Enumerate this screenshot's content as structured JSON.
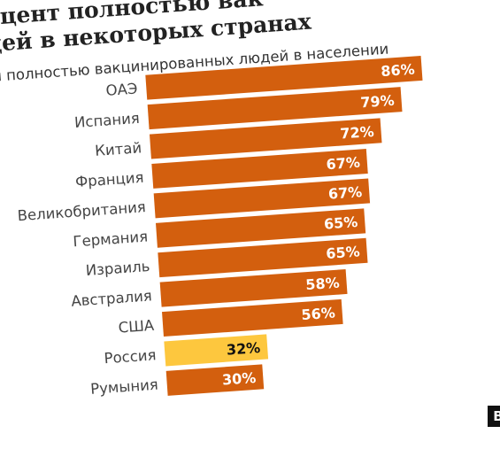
{
  "title_lines": [
    "оцент полностью вак",
    "дей в некоторых странах"
  ],
  "subtitle": "я полностью вакцинированных людей в населении",
  "logo_text": "B",
  "colors": {
    "bar": "#d35f0e",
    "highlight": "#fdc73e",
    "label_on_bar": "#ffffff",
    "label_on_highlight": "#111111"
  },
  "chart_data": {
    "type": "bar",
    "orientation": "horizontal",
    "title": "оцент полностью вак… дей в некоторых странах",
    "subtitle": "я полностью вакцинированных людей в населении",
    "categories": [
      "ОАЭ",
      "Испания",
      "Китай",
      "Франция",
      "Великобритания",
      "Германия",
      "Израиль",
      "Австралия",
      "США",
      "Россия",
      "Румыния"
    ],
    "values": [
      86,
      79,
      72,
      67,
      67,
      65,
      65,
      58,
      56,
      32,
      30
    ],
    "value_labels": [
      "86%",
      "79%",
      "72%",
      "67%",
      "67%",
      "65%",
      "65%",
      "58%",
      "56%",
      "32%",
      "30%"
    ],
    "highlight": "Россия",
    "xlabel": "",
    "ylabel": "",
    "xlim": [
      0,
      86
    ],
    "grid": false,
    "legend": "none"
  }
}
